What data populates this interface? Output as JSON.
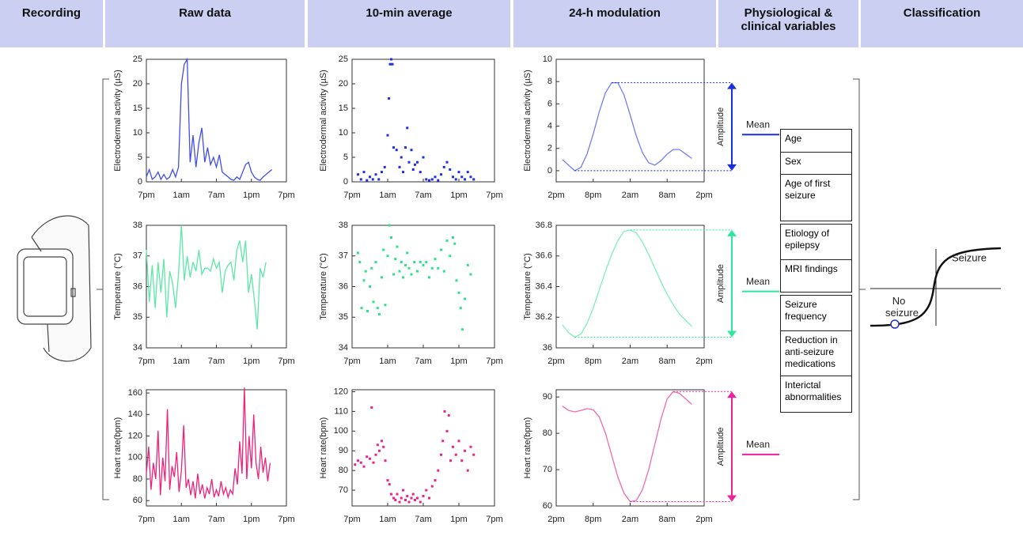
{
  "header": [
    "Recording",
    "Raw data",
    "10-min average",
    "24-h modulation",
    "Physiological & clinical variables",
    "Classification"
  ],
  "chart_data": [
    {
      "type": "line",
      "ylabel": "Electrodermal activity (µS)",
      "color": "#3f4fe8",
      "xlim": [
        0,
        24
      ],
      "xticks": [
        {
          "value": 0,
          "label": "7pm"
        },
        {
          "value": 6,
          "label": "1am"
        },
        {
          "value": 12,
          "label": "7am"
        },
        {
          "value": 18,
          "label": "1pm"
        },
        {
          "value": 24,
          "label": "7pm"
        }
      ],
      "ylim": [
        0,
        25
      ],
      "yticks": [
        0,
        5,
        10,
        15,
        20,
        25
      ],
      "x": [
        0,
        0.5,
        1,
        1.5,
        2,
        2.5,
        3,
        3.5,
        4,
        4.5,
        5,
        5.5,
        6,
        6.5,
        7,
        7.5,
        8,
        8.5,
        9,
        9.5,
        10,
        10.5,
        11,
        11.5,
        12,
        12.5,
        13,
        13.5,
        14,
        14.5,
        15,
        15.5,
        16,
        16.5,
        17,
        17.5,
        18,
        18.5,
        19,
        19.5,
        20,
        20.5,
        21,
        21.5
      ],
      "values": [
        1,
        2.5,
        0.5,
        1,
        2,
        0.5,
        1.5,
        0.5,
        1,
        2.5,
        1,
        3,
        20,
        24,
        25,
        4,
        9.5,
        3,
        8,
        11,
        4,
        7,
        3.5,
        5,
        3,
        5.5,
        2,
        1.5,
        1,
        0.5,
        0.3,
        1,
        0.5,
        2,
        3.5,
        4,
        2,
        1,
        0.5,
        0.3,
        1,
        1.5,
        2,
        2.5
      ]
    },
    {
      "type": "scatter",
      "ylabel": "Electrodermal activity (µS)",
      "color": "#1f2fe6",
      "xlim": [
        0,
        24
      ],
      "xticks": [
        {
          "value": 0,
          "label": "7pm"
        },
        {
          "value": 6,
          "label": "1am"
        },
        {
          "value": 12,
          "label": "7am"
        },
        {
          "value": 18,
          "label": "1pm"
        },
        {
          "value": 24,
          "label": "7pm"
        }
      ],
      "ylim": [
        0,
        25
      ],
      "yticks": [
        0,
        5,
        10,
        15,
        20,
        25
      ],
      "x": [
        1,
        1.5,
        2,
        2.5,
        3,
        3.5,
        4,
        4.5,
        5,
        5.5,
        6,
        6.2,
        6.4,
        6.6,
        6.8,
        7,
        7.5,
        8,
        8.3,
        8.6,
        9,
        9.3,
        9.6,
        10,
        10.3,
        10.6,
        11,
        11.5,
        12,
        12.5,
        13,
        13.5,
        14,
        14.5,
        15,
        15.5,
        16,
        16.5,
        17,
        17.5,
        18,
        18.5,
        19,
        19.5,
        20,
        20.5
      ],
      "values": [
        1.5,
        0.5,
        2,
        0.3,
        1,
        0.5,
        1.5,
        0.5,
        2,
        3,
        9.5,
        17,
        24,
        25,
        24,
        7,
        6.5,
        3,
        5,
        2,
        7,
        11,
        4,
        6.5,
        2.5,
        3.5,
        4,
        2,
        5,
        0.5,
        0.3,
        0.5,
        1,
        0.3,
        1.5,
        3,
        4,
        2.5,
        1,
        0.5,
        2,
        1,
        0.5,
        2,
        1,
        0.5
      ]
    },
    {
      "type": "line",
      "ylabel": "Electrodermal activity (µS)",
      "color": "#6f7ff0",
      "xlim": [
        0,
        24
      ],
      "xticks": [
        {
          "value": 0,
          "label": "2pm"
        },
        {
          "value": 6,
          "label": "8pm"
        },
        {
          "value": 12,
          "label": "2am"
        },
        {
          "value": 18,
          "label": "8am"
        },
        {
          "value": 24,
          "label": "2pm"
        }
      ],
      "ylim": [
        -1,
        10
      ],
      "yticks": [
        0,
        2,
        4,
        6,
        8,
        10
      ],
      "x": [
        1,
        2,
        3,
        4,
        5,
        6,
        7,
        8,
        9,
        10,
        11,
        12,
        13,
        14,
        15,
        16,
        17,
        18,
        19,
        20,
        21,
        22
      ],
      "values": [
        1,
        0.5,
        0,
        0.3,
        1.5,
        3.3,
        5.3,
        7,
        7.9,
        7.9,
        6.8,
        5,
        3.1,
        1.6,
        0.7,
        0.5,
        0.9,
        1.5,
        1.9,
        1.9,
        1.5,
        1.1
      ]
    },
    {
      "type": "line",
      "ylabel": "Temperature (°C)",
      "color": "#5ce8a6",
      "xlim": [
        0,
        24
      ],
      "xticks": [
        {
          "value": 0,
          "label": "7pm"
        },
        {
          "value": 6,
          "label": "1am"
        },
        {
          "value": 12,
          "label": "7am"
        },
        {
          "value": 18,
          "label": "1pm"
        },
        {
          "value": 24,
          "label": "7pm"
        }
      ],
      "ylim": [
        34,
        38
      ],
      "yticks": [
        34,
        35,
        36,
        37,
        38
      ],
      "x": [
        0,
        0.5,
        1,
        1.5,
        2,
        2.5,
        3,
        3.5,
        4,
        4.5,
        5,
        5.5,
        6,
        6.5,
        7,
        7.5,
        8,
        8.5,
        9,
        9.5,
        10,
        10.5,
        11,
        11.5,
        12,
        12.5,
        13,
        13.5,
        14,
        14.5,
        15,
        15.5,
        16,
        16.5,
        17,
        17.5,
        18,
        18.5,
        19,
        19.5,
        20,
        20.5
      ],
      "values": [
        37.2,
        35.5,
        36.7,
        35.3,
        36.8,
        35.8,
        36.9,
        35,
        36.5,
        36.1,
        35.3,
        36.4,
        38,
        36.2,
        37,
        36.3,
        36.8,
        36.5,
        37.2,
        36.4,
        36.6,
        36.6,
        36.5,
        36.9,
        36.6,
        36.8,
        35.8,
        36.5,
        36.7,
        36.8,
        36.2,
        37.2,
        37.5,
        36.8,
        37.5,
        35.8,
        36.4,
        35.6,
        34.6,
        36.6,
        36.3,
        36.8
      ]
    },
    {
      "type": "scatter",
      "ylabel": "Temperature (°C)",
      "color": "#2fe08c",
      "xlim": [
        0,
        24
      ],
      "xticks": [
        {
          "value": 0,
          "label": "7pm"
        },
        {
          "value": 6,
          "label": "1am"
        },
        {
          "value": 12,
          "label": "7am"
        },
        {
          "value": 18,
          "label": "1pm"
        },
        {
          "value": 24,
          "label": "7pm"
        }
      ],
      "ylim": [
        34,
        38
      ],
      "yticks": [
        34,
        35,
        36,
        37,
        38
      ],
      "x": [
        1,
        1.3,
        1.6,
        2,
        2.3,
        2.6,
        3,
        3.3,
        3.6,
        4,
        4.3,
        4.6,
        5,
        5.3,
        5.6,
        6,
        6.3,
        6.6,
        7,
        7.3,
        7.6,
        8,
        8.3,
        8.6,
        9,
        9.3,
        9.6,
        10,
        10.5,
        11,
        11.5,
        12,
        12.5,
        13,
        13.5,
        14,
        14.5,
        15,
        15.5,
        16,
        16.5,
        17,
        17.3,
        17.6,
        18,
        18.3,
        18.6,
        19,
        19.5,
        20
      ],
      "values": [
        37.1,
        36.8,
        35.3,
        36.2,
        36.5,
        35.2,
        36,
        36.6,
        35.5,
        36.8,
        35.3,
        35.1,
        36.3,
        37.2,
        35.4,
        37,
        38,
        37.6,
        36.4,
        36.9,
        37.3,
        36.5,
        36.8,
        36.3,
        36.7,
        37.1,
        36.6,
        36.4,
        36.8,
        36.5,
        36.8,
        36.7,
        36.8,
        36.3,
        36.6,
        36.9,
        36.6,
        37.2,
        36.5,
        37.5,
        37,
        37.6,
        37.4,
        36.2,
        35.8,
        35.3,
        34.6,
        35.6,
        36.7,
        36.4
      ]
    },
    {
      "type": "line",
      "ylabel": "Temperature (°C)",
      "color": "#7ef0bc",
      "xlim": [
        0,
        24
      ],
      "xticks": [
        {
          "value": 0,
          "label": "2pm"
        },
        {
          "value": 6,
          "label": "8pm"
        },
        {
          "value": 12,
          "label": "2am"
        },
        {
          "value": 18,
          "label": "8am"
        },
        {
          "value": 24,
          "label": "2pm"
        }
      ],
      "ylim": [
        36,
        36.8
      ],
      "yticks": [
        36,
        36.2,
        36.4,
        36.6,
        36.8
      ],
      "x": [
        1,
        2,
        3,
        4,
        5,
        6,
        7,
        8,
        9,
        10,
        11,
        12,
        13,
        14,
        15,
        16,
        17,
        18,
        19,
        20,
        21,
        22
      ],
      "values": [
        36.15,
        36.1,
        36.07,
        36.09,
        36.16,
        36.26,
        36.38,
        36.5,
        36.61,
        36.7,
        36.76,
        36.77,
        36.75,
        36.69,
        36.61,
        36.52,
        36.43,
        36.35,
        36.28,
        36.22,
        36.18,
        36.14
      ]
    },
    {
      "type": "line",
      "ylabel": "Heart rate(bpm)",
      "color": "#f0207a",
      "xlim": [
        0,
        24
      ],
      "xticks": [
        {
          "value": 0,
          "label": "7pm"
        },
        {
          "value": 6,
          "label": "1am"
        },
        {
          "value": 12,
          "label": "7am"
        },
        {
          "value": 18,
          "label": "1pm"
        },
        {
          "value": 24,
          "label": "7pm"
        }
      ],
      "ylim": [
        55,
        163
      ],
      "yticks": [
        60,
        80,
        100,
        120,
        140,
        160
      ],
      "x": [
        0,
        0.4,
        0.8,
        1.2,
        1.6,
        2,
        2.4,
        2.8,
        3.2,
        3.6,
        4,
        4.4,
        4.8,
        5.2,
        5.6,
        6,
        6.4,
        6.8,
        7.2,
        7.6,
        8,
        8.4,
        8.8,
        9.2,
        9.6,
        10,
        10.4,
        10.8,
        11.2,
        11.6,
        12,
        12.4,
        12.8,
        13.2,
        13.6,
        14,
        14.4,
        14.8,
        15.2,
        15.6,
        16,
        16.4,
        16.8,
        17.2,
        17.6,
        18,
        18.4,
        18.8,
        19.2,
        19.6,
        20,
        20.4,
        20.8,
        21.2
      ],
      "values": [
        85,
        110,
        70,
        95,
        80,
        125,
        65,
        100,
        78,
        145,
        70,
        92,
        82,
        105,
        68,
        88,
        130,
        72,
        80,
        65,
        78,
        62,
        85,
        66,
        75,
        62,
        72,
        66,
        80,
        63,
        70,
        64,
        78,
        66,
        72,
        63,
        70,
        66,
        90,
        75,
        115,
        85,
        165,
        80,
        120,
        90,
        140,
        95,
        80,
        110,
        86,
        100,
        78,
        95
      ]
    },
    {
      "type": "scatter",
      "ylabel": "Heart rate(bpm)",
      "color": "#ee2288",
      "xlim": [
        0,
        24
      ],
      "xticks": [
        {
          "value": 0,
          "label": "7pm"
        },
        {
          "value": 6,
          "label": "1am"
        },
        {
          "value": 12,
          "label": "7am"
        },
        {
          "value": 18,
          "label": "1pm"
        },
        {
          "value": 24,
          "label": "7pm"
        }
      ],
      "ylim": [
        62,
        121
      ],
      "yticks": [
        70,
        80,
        90,
        100,
        110,
        120
      ],
      "x": [
        0.5,
        1,
        1.5,
        2,
        2.5,
        3,
        3.3,
        3.6,
        4,
        4.3,
        4.6,
        5,
        5.3,
        5.6,
        6,
        6.3,
        6.6,
        7,
        7.3,
        7.6,
        8,
        8.3,
        8.6,
        9,
        9.3,
        9.6,
        10,
        10.3,
        10.6,
        11,
        11.5,
        12,
        12.5,
        13,
        13.5,
        14,
        14.5,
        15,
        15.3,
        15.6,
        16,
        16.3,
        16.6,
        17,
        17.5,
        18,
        18.5,
        19,
        19.5,
        20,
        20.5
      ],
      "values": [
        83,
        85,
        84,
        82,
        87,
        86,
        112,
        84,
        88,
        93,
        90,
        95,
        92,
        85,
        75,
        73,
        68,
        66,
        65,
        68,
        64,
        66,
        70,
        65,
        67,
        64,
        66,
        68,
        65,
        66,
        64,
        67,
        70,
        66,
        72,
        75,
        80,
        88,
        95,
        110,
        100,
        108,
        85,
        92,
        88,
        95,
        85,
        90,
        80,
        92,
        88
      ]
    },
    {
      "type": "line",
      "ylabel": "Heart rate(bpm)",
      "color": "#f26aae",
      "xlim": [
        0,
        24
      ],
      "xticks": [
        {
          "value": 0,
          "label": "2pm"
        },
        {
          "value": 6,
          "label": "8pm"
        },
        {
          "value": 12,
          "label": "2am"
        },
        {
          "value": 18,
          "label": "8am"
        },
        {
          "value": 24,
          "label": "2pm"
        }
      ],
      "ylim": [
        60,
        92
      ],
      "yticks": [
        60,
        70,
        80,
        90
      ],
      "x": [
        1,
        2,
        3,
        4,
        5,
        6,
        7,
        8,
        9,
        10,
        11,
        12,
        13,
        14,
        15,
        16,
        17,
        18,
        19,
        20,
        21,
        22
      ],
      "values": [
        87.5,
        86.3,
        85.9,
        86.3,
        86.8,
        86.5,
        84.5,
        80,
        74,
        68,
        63.5,
        61.2,
        61.5,
        64.5,
        70,
        77,
        84,
        89.5,
        91.5,
        91,
        89.5,
        88
      ]
    }
  ],
  "summary": [
    {
      "mean": "Mean",
      "amplitude": "Amplitude",
      "color": "#1a2ee0"
    },
    {
      "mean": "Mean",
      "amplitude": "Amplitude",
      "color": "#2de89a"
    },
    {
      "mean": "Mean",
      "amplitude": "Amplitude",
      "color": "#f0209a"
    }
  ],
  "variables": [
    "Age",
    "Sex",
    "Age of first seizure",
    "Etiology of epilepsy",
    "MRI findings",
    "Seizure frequency",
    "Reduction in anti-seizure medications",
    "Interictal abnormalities"
  ],
  "classification": {
    "positive": "Seizure",
    "negative": "No seizure"
  }
}
